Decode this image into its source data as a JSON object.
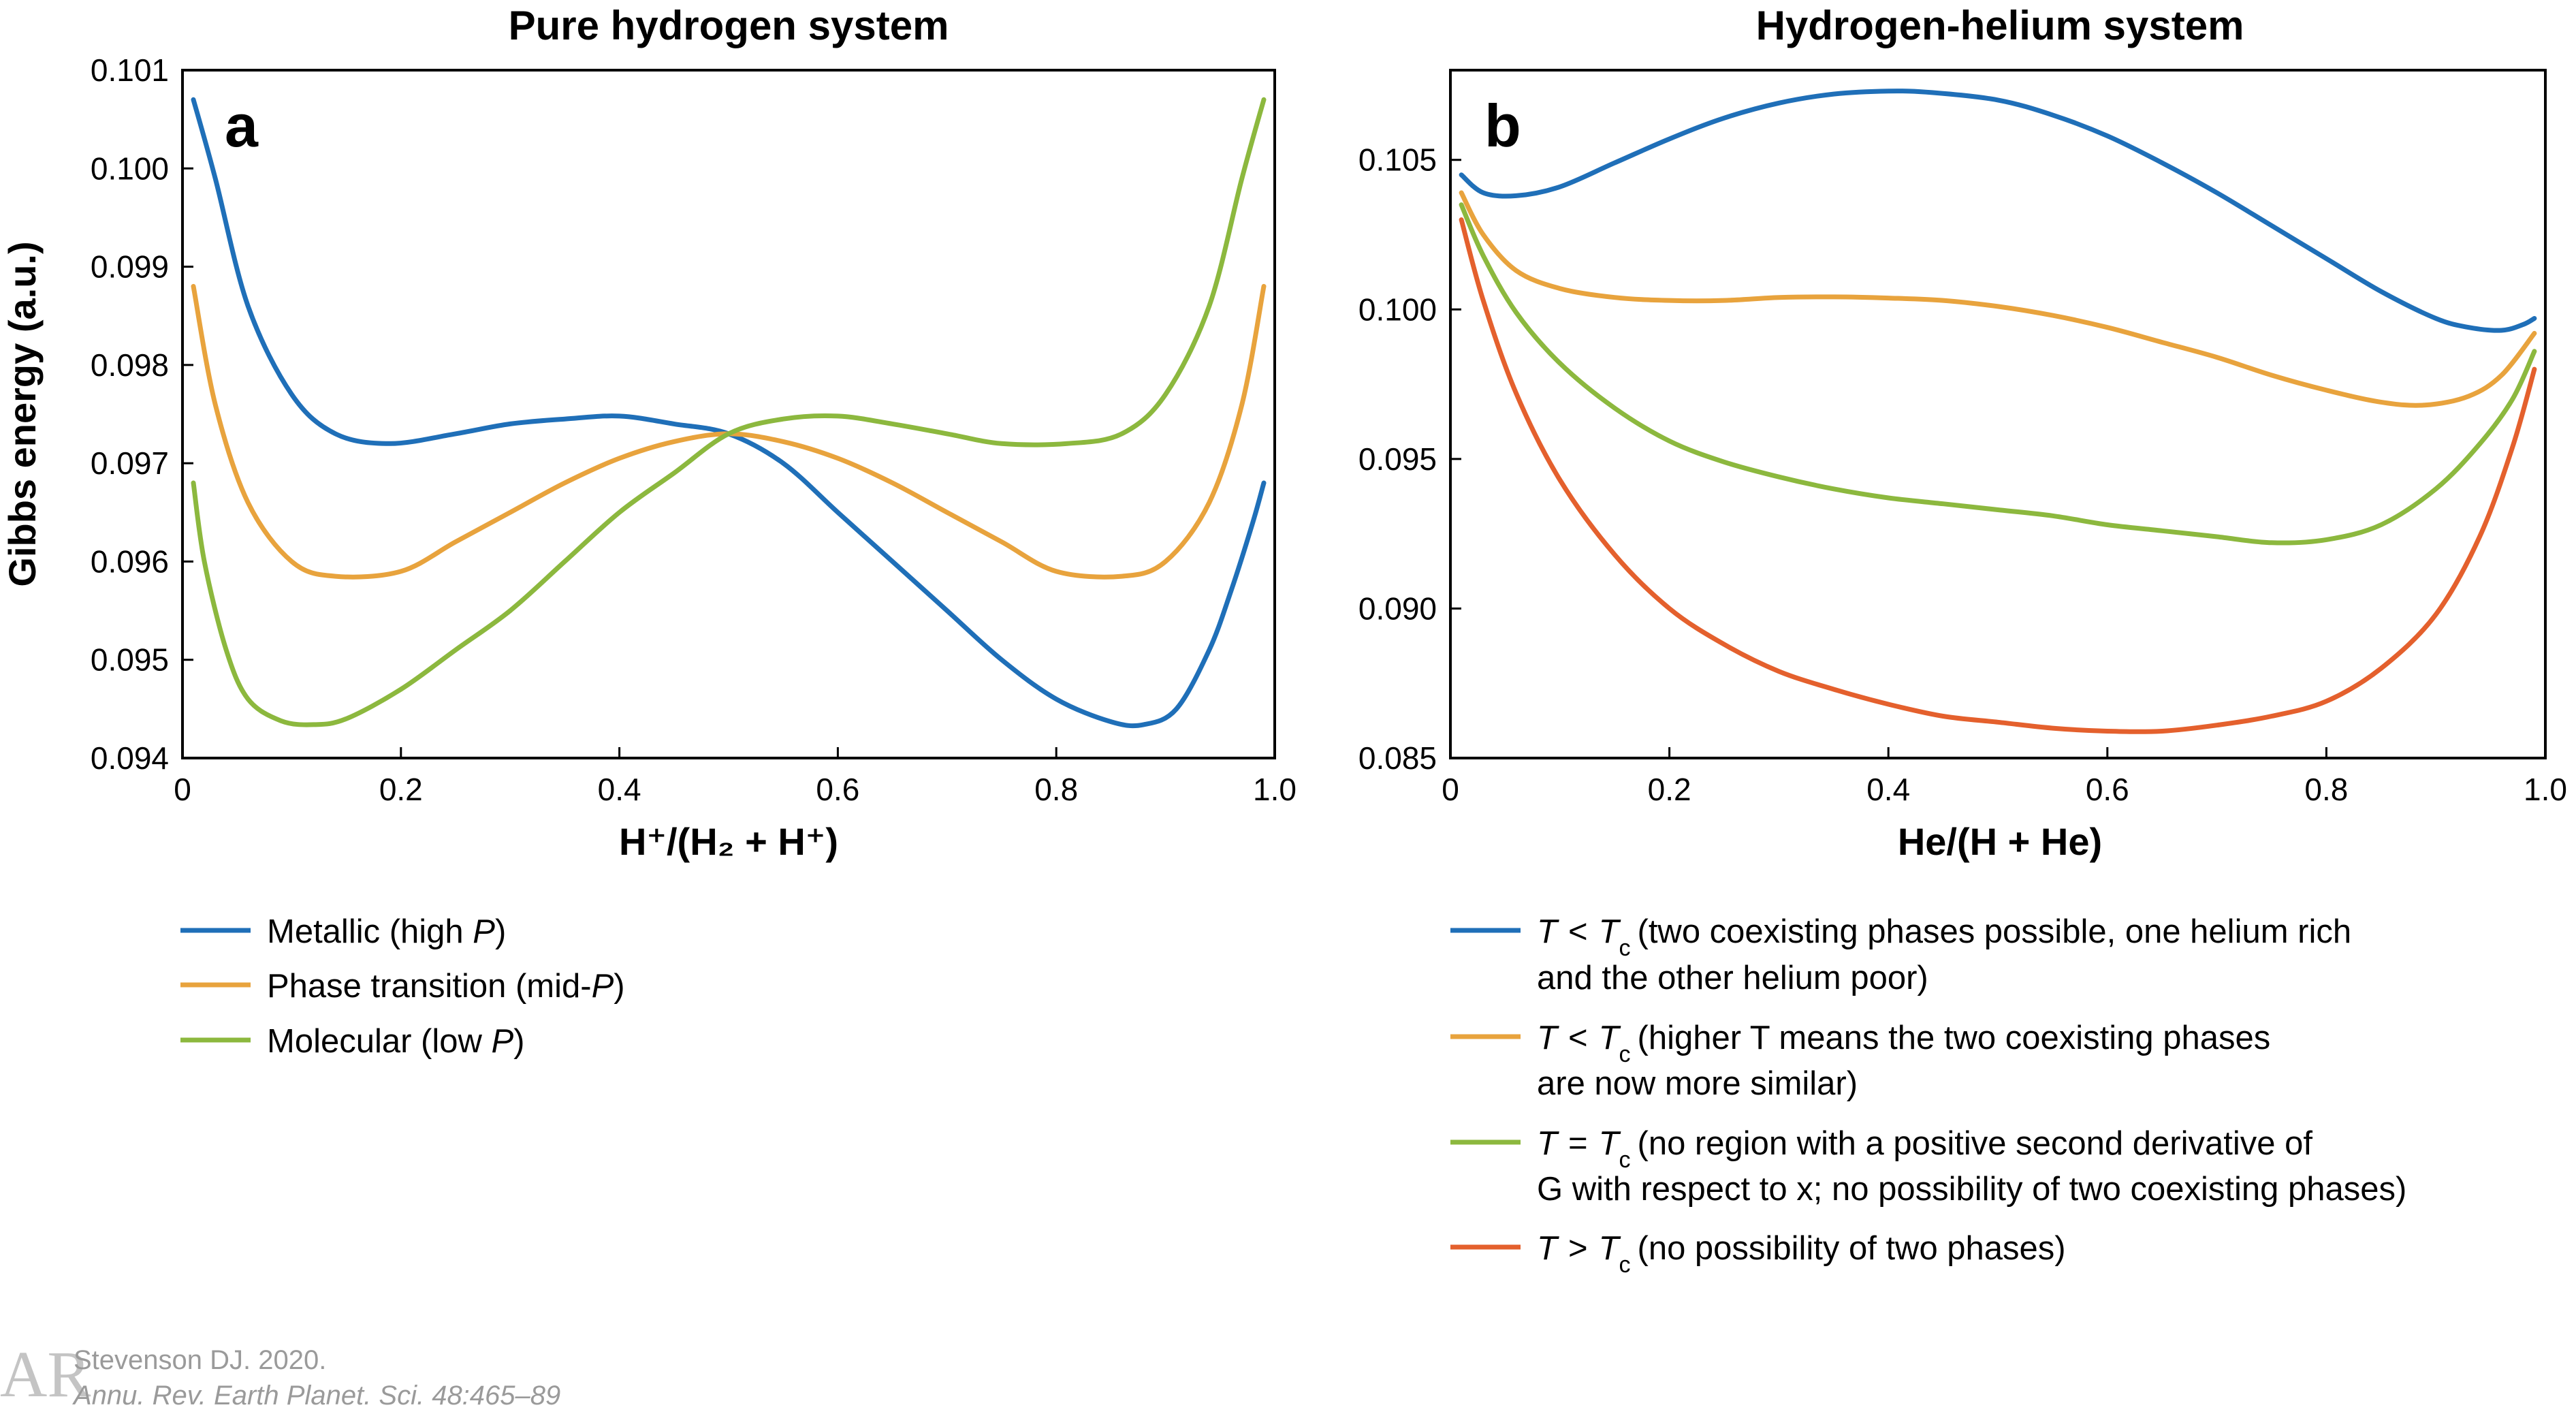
{
  "chart_data": [
    {
      "id": "a",
      "type": "line",
      "title": "Pure hydrogen system",
      "panel_label": "a",
      "xlabel": "H⁺/(H₂ + H⁺)",
      "ylabel": "Gibbs energy (a.u.)",
      "xlim": [
        0,
        1.0
      ],
      "ylim": [
        0.094,
        0.101
      ],
      "xticks": [
        "0",
        "0.2",
        "0.4",
        "0.6",
        "0.8",
        "1.0"
      ],
      "yticks": [
        "0.094",
        "0.095",
        "0.096",
        "0.097",
        "0.098",
        "0.099",
        "0.100",
        "0.101"
      ],
      "grid": false,
      "legend_position": "below",
      "series": [
        {
          "name": "Metallic (high P)",
          "name_parts": [
            "Metallic (high ",
            "P",
            ")"
          ],
          "color": "#1f6fb8",
          "x": [
            0.01,
            0.03,
            0.06,
            0.1,
            0.14,
            0.19,
            0.25,
            0.3,
            0.35,
            0.4,
            0.45,
            0.5,
            0.55,
            0.6,
            0.65,
            0.7,
            0.75,
            0.8,
            0.85,
            0.88,
            0.91,
            0.94,
            0.96,
            0.98,
            0.99
          ],
          "y": [
            0.1007,
            0.0999,
            0.0986,
            0.0977,
            0.0973,
            0.0972,
            0.0973,
            0.0974,
            0.09745,
            0.09748,
            0.0974,
            0.0973,
            0.097,
            0.0965,
            0.096,
            0.0955,
            0.095,
            0.0946,
            0.09437,
            0.09434,
            0.0945,
            0.0951,
            0.0957,
            0.0964,
            0.0968
          ]
        },
        {
          "name": "Phase transition (mid-P)",
          "name_parts": [
            "Phase transition (mid-",
            "P",
            ")"
          ],
          "color": "#e8a33d",
          "x": [
            0.01,
            0.03,
            0.06,
            0.1,
            0.14,
            0.2,
            0.25,
            0.3,
            0.35,
            0.4,
            0.45,
            0.5,
            0.55,
            0.6,
            0.65,
            0.7,
            0.75,
            0.8,
            0.86,
            0.9,
            0.94,
            0.97,
            0.99
          ],
          "y": [
            0.0988,
            0.0976,
            0.0966,
            0.096,
            0.09585,
            0.0959,
            0.0962,
            0.0965,
            0.0968,
            0.09705,
            0.09722,
            0.0973,
            0.09722,
            0.09705,
            0.0968,
            0.0965,
            0.0962,
            0.0959,
            0.09585,
            0.096,
            0.0966,
            0.0976,
            0.0988
          ]
        },
        {
          "name": "Molecular (low P)",
          "name_parts": [
            "Molecular (low ",
            "P",
            ")"
          ],
          "color": "#8cb83e",
          "x": [
            0.01,
            0.02,
            0.04,
            0.06,
            0.09,
            0.12,
            0.15,
            0.2,
            0.25,
            0.3,
            0.35,
            0.4,
            0.45,
            0.5,
            0.55,
            0.6,
            0.65,
            0.7,
            0.75,
            0.81,
            0.86,
            0.9,
            0.94,
            0.97,
            0.99
          ],
          "y": [
            0.0968,
            0.096,
            0.0951,
            0.0946,
            0.09438,
            0.09434,
            0.0944,
            0.0947,
            0.0951,
            0.0955,
            0.096,
            0.0965,
            0.0969,
            0.0973,
            0.09745,
            0.09748,
            0.0974,
            0.0973,
            0.0972,
            0.0972,
            0.0973,
            0.0977,
            0.0986,
            0.0999,
            0.1007
          ]
        }
      ]
    },
    {
      "id": "b",
      "type": "line",
      "title": "Hydrogen-helium system",
      "panel_label": "b",
      "xlabel": "He/(H + He)",
      "ylabel": "",
      "xlim": [
        0,
        1.0
      ],
      "ylim": [
        0.085,
        0.108
      ],
      "xticks": [
        "0",
        "0.2",
        "0.4",
        "0.6",
        "0.8",
        "1.0"
      ],
      "yticks": [
        "0.085",
        "0.090",
        "0.095",
        "0.100",
        "0.105"
      ],
      "ytick_values": [
        0.085,
        0.09,
        0.095,
        0.1,
        0.105
      ],
      "grid": false,
      "legend_position": "below",
      "series": [
        {
          "name": "T < Tc (two coexisting phases possible, one helium rich and the other helium poor)",
          "legend_lines": [
            "(two coexisting phases possible, one helium rich",
            "and the other helium poor)"
          ],
          "relation": "<",
          "color": "#1f6fb8",
          "x": [
            0.01,
            0.03,
            0.06,
            0.1,
            0.15,
            0.2,
            0.25,
            0.3,
            0.35,
            0.4,
            0.44,
            0.5,
            0.55,
            0.6,
            0.65,
            0.7,
            0.75,
            0.8,
            0.85,
            0.9,
            0.93,
            0.96,
            0.98,
            0.99
          ],
          "y": [
            0.1045,
            0.1039,
            0.1038,
            0.1041,
            0.1049,
            0.1057,
            0.1064,
            0.1069,
            0.1072,
            0.1073,
            0.10725,
            0.107,
            0.1065,
            0.1058,
            0.1049,
            0.1039,
            0.1028,
            0.1017,
            0.1006,
            0.0997,
            0.0994,
            0.0993,
            0.0995,
            0.0997
          ]
        },
        {
          "name": "T < Tc (higher T means the two coexisting phases are now more similar)",
          "legend_lines": [
            "(higher T means the two coexisting phases",
            "are now more similar)"
          ],
          "relation": "<",
          "color": "#e8a33d",
          "x": [
            0.01,
            0.03,
            0.06,
            0.1,
            0.15,
            0.2,
            0.25,
            0.3,
            0.35,
            0.4,
            0.45,
            0.5,
            0.55,
            0.6,
            0.65,
            0.7,
            0.75,
            0.8,
            0.85,
            0.89,
            0.93,
            0.96,
            0.99
          ],
          "y": [
            0.1039,
            0.1025,
            0.1013,
            0.1007,
            0.1004,
            0.1003,
            0.1003,
            0.1004,
            0.10042,
            0.10038,
            0.1003,
            0.1001,
            0.0998,
            0.0994,
            0.0989,
            0.0984,
            0.0978,
            0.0973,
            0.0969,
            0.0968,
            0.0971,
            0.0978,
            0.0992
          ]
        },
        {
          "name": "T = Tc (no region with a positive second derivative of G with respect to x; no possibility of two coexisting phases)",
          "legend_lines": [
            "(no region with a positive second derivative of",
            "G with respect to x; no possibility of two coexisting phases)"
          ],
          "relation": "=",
          "color": "#8cb83e",
          "x": [
            0.01,
            0.03,
            0.06,
            0.1,
            0.15,
            0.2,
            0.25,
            0.3,
            0.35,
            0.4,
            0.45,
            0.5,
            0.55,
            0.6,
            0.65,
            0.7,
            0.75,
            0.8,
            0.85,
            0.9,
            0.94,
            0.97,
            0.99
          ],
          "y": [
            0.1035,
            0.1018,
            0.0999,
            0.0982,
            0.0967,
            0.0956,
            0.0949,
            0.0944,
            0.094,
            0.0937,
            0.0935,
            0.0933,
            0.0931,
            0.0928,
            0.0926,
            0.0924,
            0.0922,
            0.0923,
            0.0928,
            0.094,
            0.0955,
            0.097,
            0.0986
          ]
        },
        {
          "name": "T > Tc (no possibility of two phases)",
          "legend_lines": [
            "(no possibility of two phases)"
          ],
          "relation": ">",
          "color": "#e4602d",
          "x": [
            0.01,
            0.03,
            0.06,
            0.1,
            0.15,
            0.2,
            0.25,
            0.3,
            0.35,
            0.4,
            0.45,
            0.5,
            0.55,
            0.6,
            0.65,
            0.7,
            0.75,
            0.8,
            0.85,
            0.9,
            0.94,
            0.97,
            0.99
          ],
          "y": [
            0.103,
            0.1003,
            0.0972,
            0.0943,
            0.0918,
            0.09,
            0.0888,
            0.0879,
            0.0873,
            0.0868,
            0.0864,
            0.0862,
            0.086,
            0.0859,
            0.0859,
            0.0861,
            0.0864,
            0.0869,
            0.088,
            0.0898,
            0.0924,
            0.0954,
            0.098
          ]
        }
      ]
    }
  ],
  "legend_symbols": {
    "T": "T",
    "Tc_base": "T",
    "Tc_sub": "c",
    "G": "G",
    "x": "x"
  },
  "credit": {
    "logo_letters": "AR",
    "line1": "Stevenson DJ. 2020.",
    "line2": "Annu. Rev. Earth Planet. Sci. 48:465–89"
  }
}
